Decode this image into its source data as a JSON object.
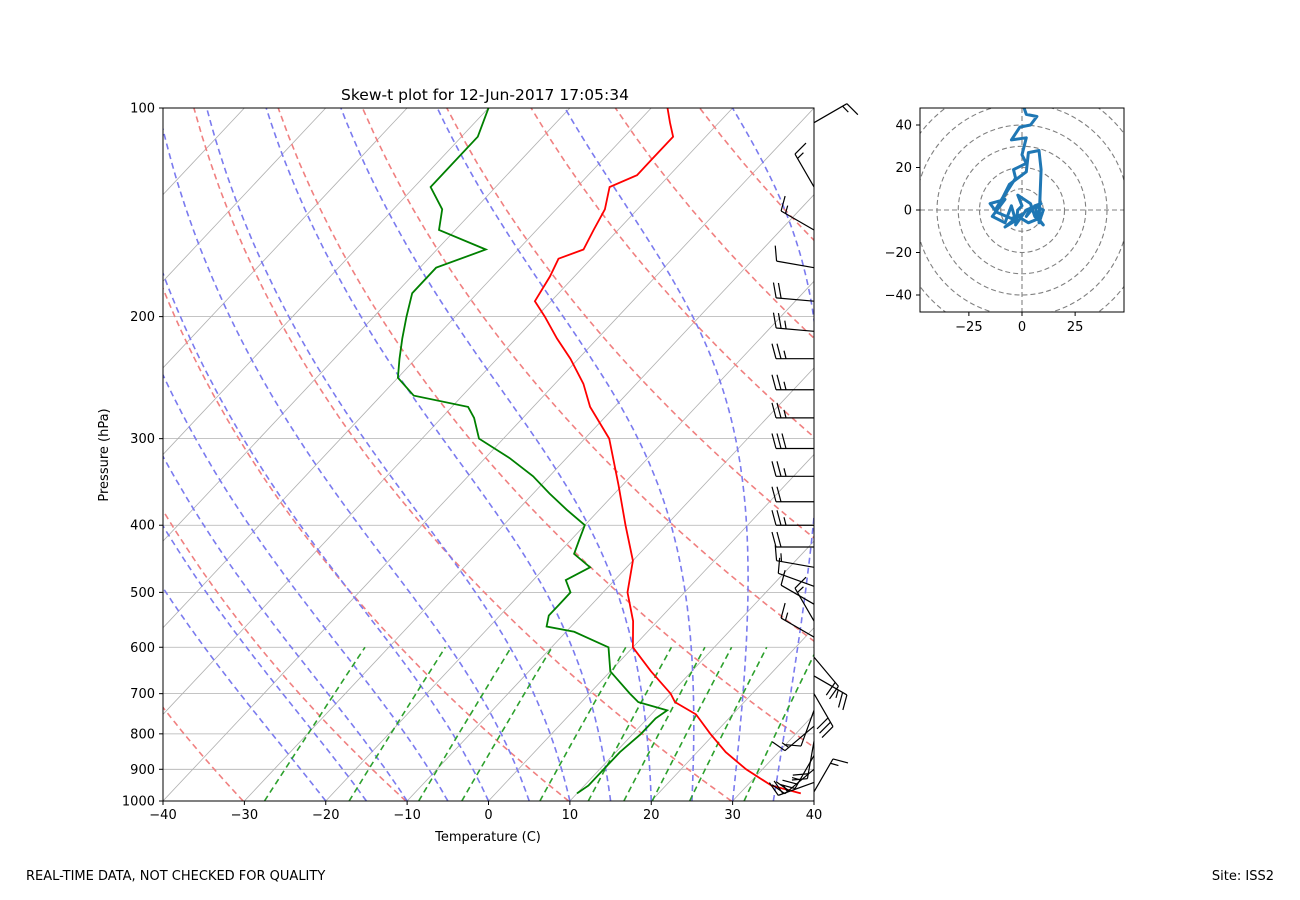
{
  "footer": {
    "disclaimer": "REAL-TIME DATA, NOT CHECKED FOR QUALITY",
    "site": "Site: ISS2"
  },
  "colors": {
    "temperature": "#ff0000",
    "dewpoint": "#008000",
    "dry_adiabat": "#f08080",
    "moist_adiabat": "#7b7bef",
    "mixing_ratio": "#2ca02c",
    "isotherm": "#b0b0b0",
    "hodograph": "#1f77b4",
    "barb": "#000000"
  },
  "chart_data": [
    {
      "type": "skew-t",
      "title": "Skew-t plot for 12-Jun-2017 17:05:34",
      "xlabel": "Temperature (C)",
      "ylabel": "Pressure (hPa)",
      "xlim": [
        -40,
        40
      ],
      "ylim": [
        1000,
        100
      ],
      "x_ticks": [
        -40,
        -30,
        -20,
        -10,
        0,
        10,
        20,
        30,
        40
      ],
      "y_ticks": [
        1000,
        900,
        800,
        700,
        600,
        500,
        400,
        300,
        200,
        100
      ],
      "grid": true,
      "series": [
        {
          "name": "Temperature",
          "points": [
            [
              975,
              37.5
            ],
            [
              950,
              33
            ],
            [
              900,
              28
            ],
            [
              850,
              23.5
            ],
            [
              800,
              19.5
            ],
            [
              750,
              15.5
            ],
            [
              720,
              11.5
            ],
            [
              700,
              10
            ],
            [
              650,
              5
            ],
            [
              600,
              0
            ],
            [
              550,
              -3
            ],
            [
              500,
              -7
            ],
            [
              450,
              -10
            ],
            [
              400,
              -15
            ],
            [
              350,
              -20.5
            ],
            [
              300,
              -27
            ],
            [
              270,
              -33
            ],
            [
              250,
              -36.5
            ],
            [
              230,
              -41
            ],
            [
              215,
              -45
            ],
            [
              200,
              -49
            ],
            [
              190,
              -52
            ],
            [
              175,
              -53
            ],
            [
              165,
              -54
            ],
            [
              160,
              -52
            ],
            [
              150,
              -53
            ],
            [
              140,
              -54
            ],
            [
              130,
              -56
            ],
            [
              125,
              -54
            ],
            [
              118,
              -54
            ],
            [
              110,
              -54
            ],
            [
              105,
              -56
            ],
            [
              100,
              -58
            ]
          ]
        },
        {
          "name": "Dewpoint",
          "points": [
            [
              975,
              10
            ],
            [
              950,
              10.5
            ],
            [
              900,
              10.5
            ],
            [
              850,
              10.5
            ],
            [
              800,
              11
            ],
            [
              760,
              11
            ],
            [
              740,
              11.5
            ],
            [
              720,
              7
            ],
            [
              700,
              5
            ],
            [
              650,
              0
            ],
            [
              600,
              -3
            ],
            [
              570,
              -9
            ],
            [
              560,
              -13
            ],
            [
              540,
              -14
            ],
            [
              520,
              -14
            ],
            [
              500,
              -14
            ],
            [
              480,
              -16
            ],
            [
              460,
              -14.5
            ],
            [
              440,
              -18
            ],
            [
              420,
              -19
            ],
            [
              400,
              -20
            ],
            [
              380,
              -24
            ],
            [
              360,
              -28
            ],
            [
              340,
              -32
            ],
            [
              320,
              -37
            ],
            [
              300,
              -43
            ],
            [
              280,
              -46
            ],
            [
              270,
              -48
            ],
            [
              260,
              -56
            ],
            [
              245,
              -60
            ],
            [
              230,
              -62
            ],
            [
              215,
              -64
            ],
            [
              200,
              -66
            ],
            [
              185,
              -68
            ],
            [
              170,
              -68
            ],
            [
              160,
              -64
            ],
            [
              150,
              -72
            ],
            [
              140,
              -74
            ],
            [
              130,
              -78
            ],
            [
              120,
              -78
            ],
            [
              110,
              -78
            ],
            [
              100,
              -80
            ]
          ]
        }
      ],
      "dry_adiabats_theta_K": [
        243,
        263,
        283,
        303,
        323,
        343,
        363,
        383,
        403,
        423
      ],
      "moist_adiabats_start_C": [
        -20,
        -15,
        -10,
        -5,
        0,
        5,
        10,
        15,
        20,
        25,
        30,
        35,
        40
      ],
      "mixing_ratio_lines_gkg": [
        0.4,
        1,
        2,
        3,
        6,
        9,
        12,
        15,
        20,
        30
      ],
      "isotherms_C": [
        -160,
        -150,
        -140,
        -130,
        -120,
        -110,
        -100,
        -90,
        -80,
        -70,
        -60,
        -50,
        -40,
        -30,
        -20,
        -10,
        0,
        10,
        20,
        30,
        40
      ],
      "wind_barbs": [
        {
          "p": 970,
          "spd": 15,
          "dir": 30
        },
        {
          "p": 940,
          "spd": 25,
          "dir": 250
        },
        {
          "p": 900,
          "spd": 20,
          "dir": 230
        },
        {
          "p": 860,
          "spd": 25,
          "dir": 210
        },
        {
          "p": 820,
          "spd": 20,
          "dir": 190
        },
        {
          "p": 780,
          "spd": 15,
          "dir": 230
        },
        {
          "p": 740,
          "spd": 10,
          "dir": 200
        },
        {
          "p": 700,
          "spd": 30,
          "dir": 150
        },
        {
          "p": 660,
          "spd": 25,
          "dir": 120
        },
        {
          "p": 620,
          "spd": 20,
          "dir": 140
        },
        {
          "p": 580,
          "spd": 15,
          "dir": 300
        },
        {
          "p": 550,
          "spd": 15,
          "dir": 330
        },
        {
          "p": 520,
          "spd": 10,
          "dir": 300
        },
        {
          "p": 490,
          "spd": 10,
          "dir": 290
        },
        {
          "p": 460,
          "spd": 15,
          "dir": 280
        },
        {
          "p": 430,
          "spd": 20,
          "dir": 270
        },
        {
          "p": 400,
          "spd": 25,
          "dir": 270
        },
        {
          "p": 370,
          "spd": 20,
          "dir": 270
        },
        {
          "p": 340,
          "spd": 25,
          "dir": 270
        },
        {
          "p": 310,
          "spd": 30,
          "dir": 270
        },
        {
          "p": 280,
          "spd": 25,
          "dir": 270
        },
        {
          "p": 255,
          "spd": 25,
          "dir": 270
        },
        {
          "p": 230,
          "spd": 25,
          "dir": 270
        },
        {
          "p": 210,
          "spd": 25,
          "dir": 275
        },
        {
          "p": 190,
          "spd": 20,
          "dir": 275
        },
        {
          "p": 170,
          "spd": 10,
          "dir": 280
        },
        {
          "p": 150,
          "spd": 15,
          "dir": 300
        },
        {
          "p": 130,
          "spd": 15,
          "dir": 330
        },
        {
          "p": 105,
          "spd": 15,
          "dir": 60
        }
      ]
    },
    {
      "type": "hodograph",
      "xlim": [
        -48,
        48
      ],
      "ylim": [
        -48,
        48
      ],
      "x_ticks": [
        -25,
        0,
        25
      ],
      "y_ticks": [
        -40,
        -20,
        0,
        20,
        40
      ],
      "rings": [
        10,
        20,
        30,
        40,
        50,
        60,
        70
      ],
      "points": [
        [
          0,
          -2
        ],
        [
          -5,
          -4
        ],
        [
          -12,
          -1
        ],
        [
          -15,
          3
        ],
        [
          -8,
          5
        ],
        [
          -14,
          -3
        ],
        [
          -8,
          -6
        ],
        [
          -5,
          2
        ],
        [
          -3,
          -5
        ],
        [
          -8,
          -8
        ],
        [
          -2,
          -3
        ],
        [
          3,
          -6
        ],
        [
          8,
          -4
        ],
        [
          6,
          2
        ],
        [
          9,
          3
        ],
        [
          2,
          0
        ],
        [
          -3,
          -7
        ],
        [
          -2,
          0
        ],
        [
          0,
          2
        ],
        [
          -2,
          7
        ],
        [
          4,
          3
        ],
        [
          6,
          -3
        ],
        [
          10,
          -7
        ],
        [
          4,
          1
        ],
        [
          2,
          -3
        ],
        [
          6,
          2
        ],
        [
          10,
          0
        ],
        [
          8,
          -6
        ],
        [
          9,
          19
        ],
        [
          8,
          28
        ],
        [
          3,
          27
        ],
        [
          2,
          18
        ],
        [
          -6,
          12
        ],
        [
          -9,
          6
        ],
        [
          -12,
          1
        ],
        [
          -3,
          15
        ],
        [
          -4,
          19
        ],
        [
          2,
          22
        ],
        [
          0,
          26
        ],
        [
          2,
          34
        ],
        [
          -5,
          33
        ],
        [
          -1,
          39
        ],
        [
          4,
          40
        ],
        [
          7,
          44
        ],
        [
          2,
          45
        ],
        [
          1,
          48
        ]
      ]
    }
  ]
}
